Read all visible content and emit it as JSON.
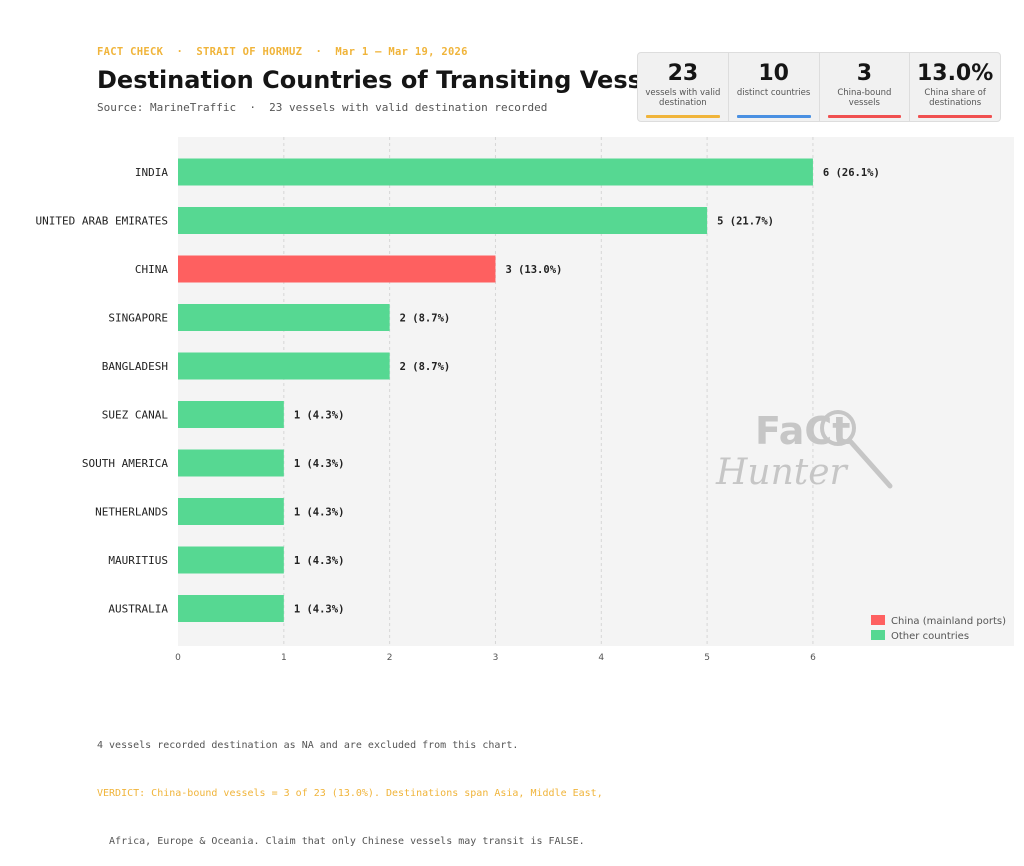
{
  "header": {
    "eyebrow": "FACT CHECK  ·  STRAIT OF HORMUZ  ·  Mar 1 – Mar 19, 2026",
    "title": "Destination Countries of Transiting Vessels",
    "subtitle": "Source: MarineTraffic  ·  23 vessels with valid destination recorded"
  },
  "kpis": [
    {
      "value": "23",
      "label": "vessels with valid destination",
      "color": "#f0b43a"
    },
    {
      "value": "10",
      "label": "distinct countries",
      "color": "#4a90e2"
    },
    {
      "value": "3",
      "label": "China-bound vessels",
      "color": "#f05050"
    },
    {
      "value": "13.0%",
      "label": "China share of destinations",
      "color": "#f05050"
    }
  ],
  "chart_data": {
    "type": "bar",
    "orientation": "horizontal",
    "categories": [
      "INDIA",
      "UNITED ARAB EMIRATES",
      "CHINA",
      "SINGAPORE",
      "BANGLADESH",
      "SUEZ CANAL",
      "SOUTH AMERICA",
      "NETHERLANDS",
      "MAURITIUS",
      "AUSTRALIA"
    ],
    "values": [
      6,
      5,
      3,
      2,
      2,
      1,
      1,
      1,
      1,
      1
    ],
    "value_labels": [
      "6  (26.1%)",
      "5  (21.7%)",
      "3  (13.0%)",
      "2  (8.7%)",
      "2  (8.7%)",
      "1  (4.3%)",
      "1  (4.3%)",
      "1  (4.3%)",
      "1  (4.3%)",
      "1  (4.3%)"
    ],
    "highlight_category": "CHINA",
    "xlim": [
      0,
      7.9
    ],
    "xticks": [
      0,
      1,
      2,
      3,
      4,
      5,
      6
    ],
    "grid": true,
    "legend_position": "bottom-right",
    "legend": [
      {
        "name": "China (mainland ports)",
        "color": "#fe6060"
      },
      {
        "name": "Other countries",
        "color": "#56d892"
      }
    ],
    "colors": {
      "highlight": "#fe6060",
      "default": "#56d892",
      "background": "#f4f4f4"
    }
  },
  "watermark": {
    "line1": "FaCt",
    "line2": "Hunter"
  },
  "footer": {
    "note": "4 vessels recorded destination as NA and are excluded from this chart.",
    "verdict_line1": "VERDICT: China-bound vessels = 3 of 23 (13.0%). Destinations span Asia, Middle East,",
    "verdict_line2": "  Africa, Europe & Oceania. Claim that only Chinese vessels may transit is FALSE."
  }
}
